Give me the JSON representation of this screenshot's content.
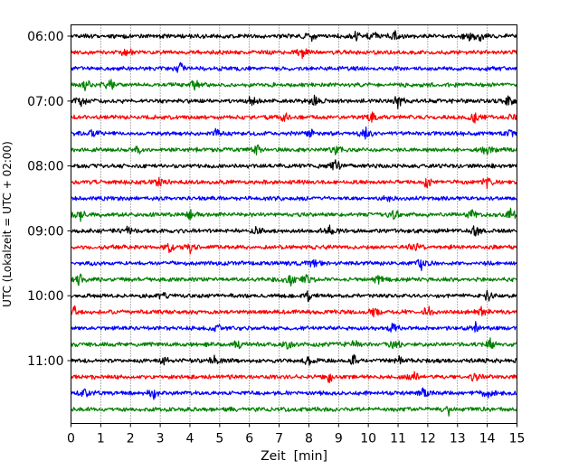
{
  "chart_data": {
    "type": "line",
    "title": "",
    "xlabel": "Zeit  [min]",
    "ylabel": "UTC (Lokalzeit = UTC + 02:00)",
    "xlim": [
      0,
      15
    ],
    "x_ticks": [
      0,
      1,
      2,
      3,
      4,
      5,
      6,
      7,
      8,
      9,
      10,
      11,
      12,
      13,
      14,
      15
    ],
    "x_tick_labels": [
      "0",
      "1",
      "2",
      "3",
      "4",
      "5",
      "6",
      "7",
      "8",
      "9",
      "10",
      "11",
      "12",
      "13",
      "14",
      "15"
    ],
    "y_tick_labels": [
      "06:00",
      "07:00",
      "08:00",
      "09:00",
      "10:00",
      "11:00"
    ],
    "row_start": "06:00",
    "row_interval_minutes": 15,
    "row_count": 24,
    "grid": "vertical dotted at each minute",
    "colors": [
      "#000000",
      "#ff0000",
      "#0000ff",
      "#008000"
    ],
    "rows": [
      {
        "start": "06:00",
        "events": [
          8.1,
          9.6,
          10.2,
          10.9,
          13.4,
          13.8
        ]
      },
      {
        "start": "06:15",
        "events": [
          1.9,
          7.8
        ]
      },
      {
        "start": "06:30",
        "events": [
          3.7
        ]
      },
      {
        "start": "06:45",
        "events": [
          0.5,
          1.3,
          4.2
        ]
      },
      {
        "start": "07:00",
        "events": [
          0.3,
          6.1,
          8.2,
          11.0,
          14.7
        ]
      },
      {
        "start": "07:15",
        "events": [
          7.2,
          10.1,
          13.6,
          14.9
        ]
      },
      {
        "start": "07:30",
        "events": [
          0.7,
          4.9,
          8.1,
          9.9,
          14.8
        ]
      },
      {
        "start": "07:45",
        "events": [
          2.2,
          6.3,
          8.9,
          14.0
        ]
      },
      {
        "start": "08:00",
        "events": [
          8.9
        ]
      },
      {
        "start": "08:15",
        "events": [
          3.0,
          12.0,
          14.0
        ]
      },
      {
        "start": "08:30",
        "events": [
          10.6
        ]
      },
      {
        "start": "08:45",
        "events": [
          0.3,
          4.0,
          10.9,
          13.5,
          14.8
        ]
      },
      {
        "start": "09:00",
        "events": [
          1.9,
          6.2,
          8.7,
          13.6
        ]
      },
      {
        "start": "09:15",
        "events": [
          3.3,
          4.0,
          11.6
        ]
      },
      {
        "start": "09:30",
        "events": [
          8.2,
          11.8
        ]
      },
      {
        "start": "09:45",
        "events": [
          0.3,
          7.4,
          7.9,
          10.3
        ]
      },
      {
        "start": "10:00",
        "events": [
          3.1,
          8.0,
          14.0
        ]
      },
      {
        "start": "10:15",
        "events": [
          0.1,
          10.2,
          12.0,
          13.8
        ]
      },
      {
        "start": "10:30",
        "events": [
          4.9,
          10.8,
          13.6
        ]
      },
      {
        "start": "10:45",
        "events": [
          5.6,
          7.3,
          9.5,
          10.9,
          14.1
        ]
      },
      {
        "start": "11:00",
        "events": [
          3.1,
          4.8,
          8.0,
          9.5,
          11.0
        ]
      },
      {
        "start": "11:15",
        "events": [
          8.7,
          11.5,
          13.6
        ]
      },
      {
        "start": "11:30",
        "events": [
          0.5,
          2.8,
          11.9,
          14.0
        ]
      },
      {
        "start": "11:45",
        "events": [
          12.7
        ]
      }
    ]
  }
}
